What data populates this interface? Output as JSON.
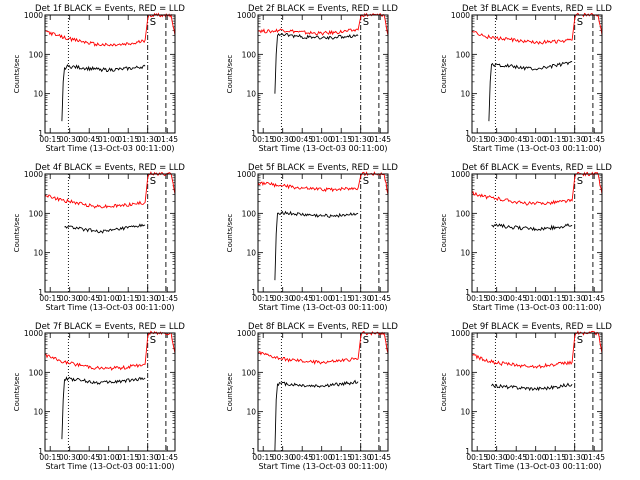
{
  "chart_data": [
    {
      "type": "line",
      "title": "Det 1f BLACK = Events, RED = LLD",
      "xlabel": "Start Time (13-Oct-03 00:11:00)",
      "ylabel": "Counts/sec",
      "yscale": "log",
      "ylim": [
        1,
        1000
      ],
      "yticks": [
        "1",
        "10",
        "100",
        "1000"
      ],
      "xticks": [
        "00:15",
        "00:30",
        "00:45",
        "01:00",
        "01:15",
        "01:30",
        "01:45"
      ],
      "xlim": [
        "00:11",
        "01:51"
      ],
      "markers": {
        "dotted": "00:29",
        "dash_dot": "01:30",
        "dashed": "01:44",
        "saa_label": "S"
      },
      "series": [
        {
          "name": "LLD",
          "color": "#ff0000",
          "x": [
            "00:11",
            "00:20",
            "00:29",
            "00:40",
            "00:50",
            "01:00",
            "01:10",
            "01:20",
            "01:28",
            "01:30",
            "01:31",
            "01:36",
            "01:42",
            "01:48",
            "01:51"
          ],
          "y": [
            400,
            300,
            250,
            210,
            180,
            170,
            175,
            190,
            230,
            800,
            1000,
            1000,
            1000,
            1000,
            300
          ]
        },
        {
          "name": "Events",
          "color": "#000000",
          "x": [
            "00:24",
            "00:25",
            "00:26",
            "00:29",
            "00:40",
            "00:50",
            "01:00",
            "01:10",
            "01:20",
            "01:28"
          ],
          "y": [
            2,
            20,
            45,
            50,
            45,
            42,
            40,
            42,
            45,
            50
          ]
        }
      ]
    },
    {
      "type": "line",
      "title": "Det 2f BLACK = Events, RED = LLD",
      "xlabel": "Start Time (13-Oct-03 00:11:00)",
      "ylabel": "Counts/sec",
      "yscale": "log",
      "ylim": [
        1,
        1000
      ],
      "yticks": [
        "1",
        "10",
        "100",
        "1000"
      ],
      "xticks": [
        "00:15",
        "00:30",
        "00:45",
        "01:00",
        "01:15",
        "01:30",
        "01:45"
      ],
      "xlim": [
        "00:11",
        "01:51"
      ],
      "markers": {
        "dotted": "00:29",
        "dash_dot": "01:30",
        "dashed": "01:44",
        "saa_label": "S"
      },
      "series": [
        {
          "name": "LLD",
          "color": "#ff0000",
          "x": [
            "00:11",
            "00:20",
            "00:29",
            "00:40",
            "00:50",
            "01:00",
            "01:10",
            "01:20",
            "01:28",
            "01:30",
            "01:31",
            "01:36",
            "01:42",
            "01:48",
            "01:51"
          ],
          "y": [
            400,
            380,
            420,
            380,
            350,
            340,
            360,
            390,
            420,
            900,
            1000,
            1000,
            1000,
            1000,
            300
          ]
        },
        {
          "name": "Events",
          "color": "#000000",
          "x": [
            "00:24",
            "00:25",
            "00:26",
            "00:29",
            "00:40",
            "00:50",
            "01:00",
            "01:10",
            "01:20",
            "01:28"
          ],
          "y": [
            10,
            100,
            300,
            320,
            290,
            270,
            260,
            270,
            290,
            300
          ]
        }
      ]
    },
    {
      "type": "line",
      "title": "Det 3f BLACK = Events, RED = LLD",
      "xlabel": "Start Time (13-Oct-03 00:11:00)",
      "ylabel": "Counts/sec",
      "yscale": "log",
      "ylim": [
        1,
        1000
      ],
      "yticks": [
        "1",
        "10",
        "100",
        "1000"
      ],
      "xticks": [
        "00:15",
        "00:30",
        "00:45",
        "01:00",
        "01:15",
        "01:30",
        "01:45"
      ],
      "xlim": [
        "00:11",
        "01:51"
      ],
      "markers": {
        "dotted": "00:29",
        "dash_dot": "01:30",
        "dashed": "01:44",
        "saa_label": "S"
      },
      "series": [
        {
          "name": "LLD",
          "color": "#ff0000",
          "x": [
            "00:11",
            "00:20",
            "00:29",
            "00:40",
            "00:50",
            "01:00",
            "01:10",
            "01:20",
            "01:28",
            "01:30",
            "01:31",
            "01:36",
            "01:42",
            "01:48",
            "01:51"
          ],
          "y": [
            400,
            290,
            260,
            240,
            210,
            200,
            205,
            215,
            230,
            800,
            1000,
            1000,
            1000,
            1000,
            300
          ]
        },
        {
          "name": "Events",
          "color": "#000000",
          "x": [
            "00:24",
            "00:25",
            "00:26",
            "00:29",
            "00:40",
            "00:50",
            "01:00",
            "01:10",
            "01:20",
            "01:28"
          ],
          "y": [
            2,
            20,
            55,
            55,
            50,
            45,
            42,
            48,
            55,
            65
          ]
        }
      ]
    },
    {
      "type": "line",
      "title": "Det 4f BLACK = Events, RED = LLD",
      "xlabel": "Start Time (13-Oct-03 00:11:00)",
      "ylabel": "Counts/sec",
      "yscale": "log",
      "ylim": [
        1,
        1000
      ],
      "yticks": [
        "1",
        "10",
        "100",
        "1000"
      ],
      "xticks": [
        "00:15",
        "00:30",
        "00:45",
        "01:00",
        "01:15",
        "01:30",
        "01:45"
      ],
      "xlim": [
        "00:11",
        "01:51"
      ],
      "markers": {
        "dotted": "00:29",
        "dash_dot": "01:30",
        "dashed": "01:44",
        "saa_label": "S"
      },
      "series": [
        {
          "name": "LLD",
          "color": "#ff0000",
          "x": [
            "00:11",
            "00:20",
            "00:29",
            "00:40",
            "00:50",
            "01:00",
            "01:10",
            "01:20",
            "01:28",
            "01:30",
            "01:31",
            "01:36",
            "01:42",
            "01:48",
            "01:51"
          ],
          "y": [
            300,
            230,
            200,
            170,
            150,
            150,
            160,
            175,
            190,
            800,
            1000,
            1000,
            1000,
            1000,
            300
          ]
        },
        {
          "name": "Events",
          "color": "#000000",
          "x": [
            "00:26",
            "00:29",
            "00:40",
            "00:50",
            "01:00",
            "01:10",
            "01:20",
            "01:28"
          ],
          "y": [
            45,
            45,
            40,
            35,
            35,
            40,
            45,
            50
          ]
        }
      ]
    },
    {
      "type": "line",
      "title": "Det 5f BLACK = Events, RED = LLD",
      "xlabel": "Start Time (13-Oct-03 00:11:00)",
      "ylabel": "Counts/sec",
      "yscale": "log",
      "ylim": [
        1,
        1000
      ],
      "yticks": [
        "1",
        "10",
        "100",
        "1000"
      ],
      "xticks": [
        "00:15",
        "00:30",
        "00:45",
        "01:00",
        "01:15",
        "01:30",
        "01:45"
      ],
      "xlim": [
        "00:11",
        "01:51"
      ],
      "markers": {
        "dotted": "00:29",
        "dash_dot": "01:30",
        "dashed": "01:44",
        "saa_label": "S"
      },
      "series": [
        {
          "name": "LLD",
          "color": "#ff0000",
          "x": [
            "00:11",
            "00:20",
            "00:29",
            "00:40",
            "00:50",
            "01:00",
            "01:10",
            "01:20",
            "01:28",
            "01:30",
            "01:31",
            "01:36",
            "01:42",
            "01:48",
            "01:51"
          ],
          "y": [
            600,
            550,
            500,
            450,
            420,
            400,
            410,
            430,
            440,
            900,
            1000,
            1000,
            1000,
            1000,
            300
          ]
        },
        {
          "name": "Events",
          "color": "#000000",
          "x": [
            "00:24",
            "00:25",
            "00:26",
            "00:29",
            "00:40",
            "00:50",
            "01:00",
            "01:10",
            "01:20",
            "01:28"
          ],
          "y": [
            2,
            30,
            100,
            105,
            95,
            90,
            85,
            88,
            92,
            100
          ]
        }
      ]
    },
    {
      "type": "line",
      "title": "Det 6f BLACK = Events, RED = LLD",
      "xlabel": "Start Time (13-Oct-03 00:11:00)",
      "ylabel": "Counts/sec",
      "yscale": "log",
      "ylim": [
        1,
        1000
      ],
      "yticks": [
        "1",
        "10",
        "100",
        "1000"
      ],
      "xticks": [
        "00:15",
        "00:30",
        "00:45",
        "01:00",
        "01:15",
        "01:30",
        "01:45"
      ],
      "xlim": [
        "00:11",
        "01:51"
      ],
      "markers": {
        "dotted": "00:29",
        "dash_dot": "01:30",
        "dashed": "01:44",
        "saa_label": "S"
      },
      "series": [
        {
          "name": "LLD",
          "color": "#ff0000",
          "x": [
            "00:11",
            "00:20",
            "00:29",
            "00:40",
            "00:50",
            "01:00",
            "01:10",
            "01:20",
            "01:28",
            "01:30",
            "01:31",
            "01:36",
            "01:42",
            "01:48",
            "01:51"
          ],
          "y": [
            330,
            270,
            240,
            210,
            180,
            175,
            185,
            200,
            210,
            800,
            1000,
            1000,
            1000,
            1000,
            300
          ]
        },
        {
          "name": "Events",
          "color": "#000000",
          "x": [
            "00:26",
            "00:29",
            "00:40",
            "00:50",
            "01:00",
            "01:10",
            "01:20",
            "01:28"
          ],
          "y": [
            50,
            50,
            45,
            42,
            40,
            42,
            46,
            50
          ]
        }
      ]
    },
    {
      "type": "line",
      "title": "Det 7f BLACK = Events, RED = LLD",
      "xlabel": "Start Time (13-Oct-03 00:11:00)",
      "ylabel": "Counts/sec",
      "yscale": "log",
      "ylim": [
        1,
        1000
      ],
      "yticks": [
        "1",
        "10",
        "100",
        "1000"
      ],
      "xticks": [
        "00:15",
        "00:30",
        "00:45",
        "01:00",
        "01:15",
        "01:30",
        "01:45"
      ],
      "xlim": [
        "00:11",
        "01:51"
      ],
      "markers": {
        "dotted": "00:29",
        "dash_dot": "01:30",
        "dashed": "01:44",
        "saa_label": "S"
      },
      "series": [
        {
          "name": "LLD",
          "color": "#ff0000",
          "x": [
            "00:11",
            "00:20",
            "00:29",
            "00:40",
            "00:50",
            "01:00",
            "01:10",
            "01:20",
            "01:28",
            "01:30",
            "01:31",
            "01:36",
            "01:42",
            "01:48",
            "01:51"
          ],
          "y": [
            280,
            210,
            170,
            150,
            130,
            125,
            130,
            145,
            160,
            800,
            1000,
            1000,
            1000,
            1000,
            300
          ]
        },
        {
          "name": "Events",
          "color": "#000000",
          "x": [
            "00:24",
            "00:25",
            "00:26",
            "00:29",
            "00:40",
            "00:50",
            "01:00",
            "01:10",
            "01:20",
            "01:28"
          ],
          "y": [
            2,
            20,
            65,
            70,
            62,
            55,
            55,
            60,
            65,
            72
          ]
        }
      ]
    },
    {
      "type": "line",
      "title": "Det 8f BLACK = Events, RED = LLD",
      "xlabel": "Start Time (13-Oct-03 00:11:00)",
      "ylabel": "Counts/sec",
      "yscale": "log",
      "ylim": [
        1,
        1000
      ],
      "yticks": [
        "1",
        "10",
        "100",
        "1000"
      ],
      "xticks": [
        "00:15",
        "00:30",
        "00:45",
        "01:00",
        "01:15",
        "01:30",
        "01:45"
      ],
      "xlim": [
        "00:11",
        "01:51"
      ],
      "markers": {
        "dotted": "00:29",
        "dash_dot": "01:30",
        "dashed": "01:44",
        "saa_label": "S"
      },
      "series": [
        {
          "name": "LLD",
          "color": "#ff0000",
          "x": [
            "00:11",
            "00:20",
            "00:29",
            "00:40",
            "00:50",
            "01:00",
            "01:10",
            "01:20",
            "01:28",
            "01:30",
            "01:31",
            "01:36",
            "01:42",
            "01:48",
            "01:51"
          ],
          "y": [
            320,
            260,
            220,
            200,
            185,
            180,
            190,
            205,
            220,
            800,
            1000,
            1000,
            1000,
            1000,
            300
          ]
        },
        {
          "name": "Events",
          "color": "#000000",
          "x": [
            "00:24",
            "00:25",
            "00:26",
            "00:29",
            "00:40",
            "00:50",
            "01:00",
            "01:10",
            "01:20",
            "01:28"
          ],
          "y": [
            1,
            20,
            50,
            52,
            48,
            45,
            45,
            48,
            52,
            58
          ]
        }
      ]
    },
    {
      "type": "line",
      "title": "Det 9f BLACK = Events, RED = LLD",
      "xlabel": "Start Time (13-Oct-03 00:11:00)",
      "ylabel": "Counts/sec",
      "yscale": "log",
      "ylim": [
        1,
        1000
      ],
      "yticks": [
        "1",
        "10",
        "100",
        "1000"
      ],
      "xticks": [
        "00:15",
        "00:30",
        "00:45",
        "01:00",
        "01:15",
        "01:30",
        "01:45"
      ],
      "xlim": [
        "00:11",
        "01:51"
      ],
      "markers": {
        "dotted": "00:29",
        "dash_dot": "01:30",
        "dashed": "01:44",
        "saa_label": "S"
      },
      "series": [
        {
          "name": "LLD",
          "color": "#ff0000",
          "x": [
            "00:11",
            "00:20",
            "00:29",
            "00:40",
            "00:50",
            "01:00",
            "01:10",
            "01:20",
            "01:28",
            "01:30",
            "01:31",
            "01:36",
            "01:42",
            "01:48",
            "01:51"
          ],
          "y": [
            280,
            210,
            175,
            160,
            145,
            140,
            150,
            165,
            180,
            800,
            1000,
            1000,
            1000,
            1000,
            300
          ]
        },
        {
          "name": "Events",
          "color": "#000000",
          "x": [
            "00:26",
            "00:29",
            "00:40",
            "00:50",
            "01:00",
            "01:10",
            "01:20",
            "01:28"
          ],
          "y": [
            45,
            45,
            42,
            40,
            38,
            40,
            45,
            50
          ]
        }
      ]
    }
  ]
}
